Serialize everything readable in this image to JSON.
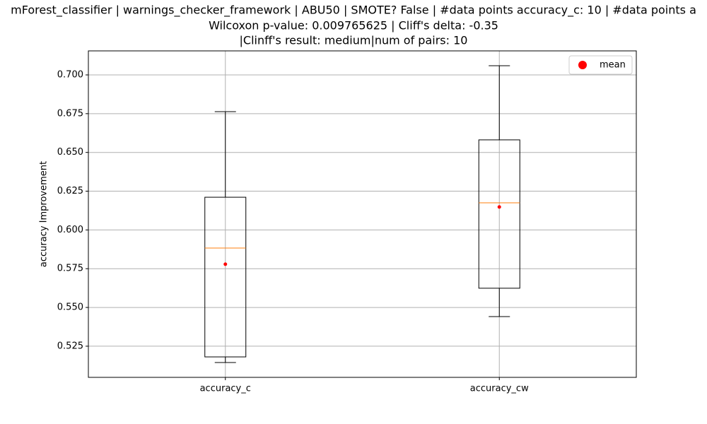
{
  "chart_data": {
    "type": "box",
    "title": [
      "mForest_classifier | warnings_checker_framework | ABU50 | SMOTE? False | #data points accuracy_c: 10 | #data points a",
      "Wilcoxon p-value: 0.009765625 | Cliff's delta: -0.35",
      "|Clinff's result: medium|num of pairs: 10"
    ],
    "ylabel": "accuracy Improvement",
    "categories": [
      "accuracy_c",
      "accuracy_cw"
    ],
    "boxes": [
      {
        "whislo": 0.5145,
        "q1": 0.5181,
        "med": 0.5883,
        "q3": 0.6211,
        "whishi": 0.6763,
        "mean": 0.5779
      },
      {
        "whislo": 0.5441,
        "q1": 0.5624,
        "med": 0.6175,
        "q3": 0.6581,
        "whishi": 0.7059,
        "mean": 0.6148
      }
    ],
    "box_color": "#000000",
    "median_color": "#ff7f0e",
    "mean_color": "#ff0000",
    "legend": {
      "entries": [
        "mean"
      ],
      "loc": "upper right"
    },
    "ylim": [
      0.5049,
      0.7155
    ],
    "yticks": [
      {
        "value": 0.525,
        "label": "0.525"
      },
      {
        "value": 0.55,
        "label": "0.550"
      },
      {
        "value": 0.575,
        "label": "0.575"
      },
      {
        "value": 0.6,
        "label": "0.600"
      },
      {
        "value": 0.625,
        "label": "0.625"
      },
      {
        "value": 0.65,
        "label": "0.650"
      },
      {
        "value": 0.675,
        "label": "0.675"
      },
      {
        "value": 0.7,
        "label": "0.700"
      }
    ],
    "grid": true
  }
}
